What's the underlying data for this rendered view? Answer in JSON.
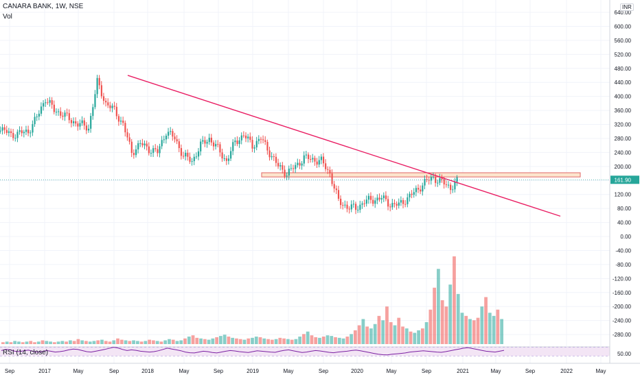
{
  "header": {
    "title": "CANARA BANK, 1W, NSE",
    "volume_label": "Vol",
    "rsi_label": "RSI (14, close)",
    "currency": "INR"
  },
  "colors": {
    "up": "#26a69a",
    "down": "#ef5350",
    "trendline": "#e91e63",
    "zone_fill": "#fce5cd",
    "zone_stroke": "#e06666",
    "rsi_line": "#7b1fa2",
    "rsi_band": "#f3e5f5",
    "price_line": "#26a69a",
    "price_tag": "#26a69a"
  },
  "chart_data": {
    "type": "candlestick",
    "title": "CANARA BANK, 1W, NSE",
    "x_ticks": [
      "Sep",
      "2017",
      "May",
      "Sep",
      "2018",
      "May",
      "Sep",
      "2019",
      "May",
      "Sep",
      "2020",
      "May",
      "Sep",
      "2021",
      "May",
      "Sep",
      "2022",
      "May"
    ],
    "y_ticks": [
      "640.00",
      "600.00",
      "560.00",
      "520.00",
      "480.00",
      "440.00",
      "400.00",
      "360.00",
      "320.00",
      "280.00",
      "240.00",
      "200.00",
      "160.00",
      "120.00",
      "80.00",
      "40.00",
      "0.00",
      "-40.00",
      "-80.00",
      "-120.00",
      "-160.00",
      "-200.00",
      "-240.00",
      "-280.00"
    ],
    "rsi_tick": "50.00",
    "last_price_label": "161.90",
    "last_price": 161.9,
    "price_series": [
      {
        "x": "2016-09",
        "close": 260
      },
      {
        "x": "2016-11",
        "close": 320
      },
      {
        "x": "2017-01",
        "close": 290
      },
      {
        "x": "2017-03",
        "close": 300
      },
      {
        "x": "2017-04",
        "close": 340
      },
      {
        "x": "2017-05",
        "close": 395
      },
      {
        "x": "2017-06",
        "close": 360
      },
      {
        "x": "2017-07",
        "close": 350
      },
      {
        "x": "2017-08",
        "close": 330
      },
      {
        "x": "2017-10",
        "close": 310
      },
      {
        "x": "2017-11",
        "close": 440
      },
      {
        "x": "2017-12",
        "close": 380
      },
      {
        "x": "2018-01",
        "close": 360
      },
      {
        "x": "2018-02",
        "close": 320
      },
      {
        "x": "2018-03",
        "close": 240
      },
      {
        "x": "2018-04",
        "close": 265
      },
      {
        "x": "2018-05",
        "close": 250
      },
      {
        "x": "2018-06",
        "close": 240
      },
      {
        "x": "2018-07",
        "close": 300
      },
      {
        "x": "2018-08",
        "close": 280
      },
      {
        "x": "2018-09",
        "close": 230
      },
      {
        "x": "2018-10",
        "close": 215
      },
      {
        "x": "2018-11",
        "close": 260
      },
      {
        "x": "2018-12",
        "close": 280
      },
      {
        "x": "2019-01",
        "close": 250
      },
      {
        "x": "2019-02",
        "close": 215
      },
      {
        "x": "2019-03",
        "close": 270
      },
      {
        "x": "2019-04",
        "close": 290
      },
      {
        "x": "2019-05",
        "close": 260
      },
      {
        "x": "2019-06",
        "close": 280
      },
      {
        "x": "2019-07",
        "close": 240
      },
      {
        "x": "2019-08",
        "close": 200
      },
      {
        "x": "2019-09",
        "close": 180
      },
      {
        "x": "2019-10",
        "close": 200
      },
      {
        "x": "2019-11",
        "close": 225
      },
      {
        "x": "2019-12",
        "close": 220
      },
      {
        "x": "2020-01",
        "close": 215
      },
      {
        "x": "2020-02",
        "close": 180
      },
      {
        "x": "2020-03",
        "close": 100
      },
      {
        "x": "2020-04",
        "close": 85
      },
      {
        "x": "2020-05",
        "close": 80
      },
      {
        "x": "2020-06",
        "close": 100
      },
      {
        "x": "2020-07",
        "close": 105
      },
      {
        "x": "2020-08",
        "close": 110
      },
      {
        "x": "2020-09",
        "close": 92
      },
      {
        "x": "2020-10",
        "close": 90
      },
      {
        "x": "2020-11",
        "close": 110
      },
      {
        "x": "2020-12",
        "close": 130
      },
      {
        "x": "2021-01",
        "close": 155
      },
      {
        "x": "2021-02",
        "close": 168
      },
      {
        "x": "2021-03",
        "close": 155
      },
      {
        "x": "2021-04",
        "close": 140
      },
      {
        "x": "2021-05",
        "close": 162
      }
    ],
    "volume_series": [
      3,
      4,
      3,
      5,
      4,
      3,
      4,
      5,
      3,
      4,
      6,
      5,
      4,
      3,
      4,
      5,
      4,
      6,
      5,
      8,
      6,
      5,
      4,
      5,
      6,
      7,
      5,
      4,
      6,
      9,
      7,
      6,
      5,
      6,
      5,
      4,
      5,
      7,
      6,
      5,
      4,
      6,
      8,
      7,
      5,
      6,
      9,
      12,
      14,
      10,
      9,
      8,
      7,
      9,
      11,
      13,
      15,
      12,
      10,
      9,
      8,
      7,
      9,
      10,
      12,
      11,
      9,
      8,
      7,
      8,
      10,
      9,
      8,
      7,
      8,
      12,
      16,
      20,
      14,
      11,
      10,
      12,
      14,
      13,
      11,
      10,
      9,
      12,
      16,
      22,
      30,
      40,
      28,
      25,
      32,
      45,
      38,
      60,
      35,
      30,
      42,
      28,
      25,
      20,
      18,
      22,
      25,
      35,
      55,
      90,
      120,
      70,
      60,
      95,
      140,
      80,
      50,
      45,
      40,
      38,
      42,
      60,
      75,
      50,
      45,
      55,
      40
    ],
    "rsi_series": [
      55,
      60,
      58,
      52,
      50,
      54,
      57,
      52,
      48,
      50,
      55,
      52,
      48,
      50,
      53,
      58,
      62,
      60,
      55,
      50,
      48,
      52,
      56,
      60,
      65,
      70,
      67,
      60,
      55,
      58,
      56,
      52,
      50,
      48,
      50,
      54,
      60,
      66,
      62,
      58,
      54,
      48,
      45,
      44,
      48,
      52,
      50,
      46,
      44,
      48,
      52,
      55,
      53,
      50,
      48,
      46,
      50,
      54,
      52,
      50,
      48,
      47,
      52,
      56,
      58,
      54,
      50,
      46,
      48,
      52,
      55,
      53,
      50,
      47,
      45,
      48,
      50,
      52,
      55,
      57,
      54,
      50,
      46,
      42,
      38,
      36,
      35,
      38,
      40,
      42,
      44,
      48,
      50,
      52,
      54,
      52,
      50,
      48,
      47,
      50,
      54,
      58,
      62,
      66,
      68,
      64,
      60,
      56,
      52,
      50,
      48,
      52,
      56
    ],
    "annotations": [
      {
        "type": "trendline",
        "label": ""
      },
      {
        "type": "horizontal_zone",
        "label": ""
      }
    ]
  }
}
